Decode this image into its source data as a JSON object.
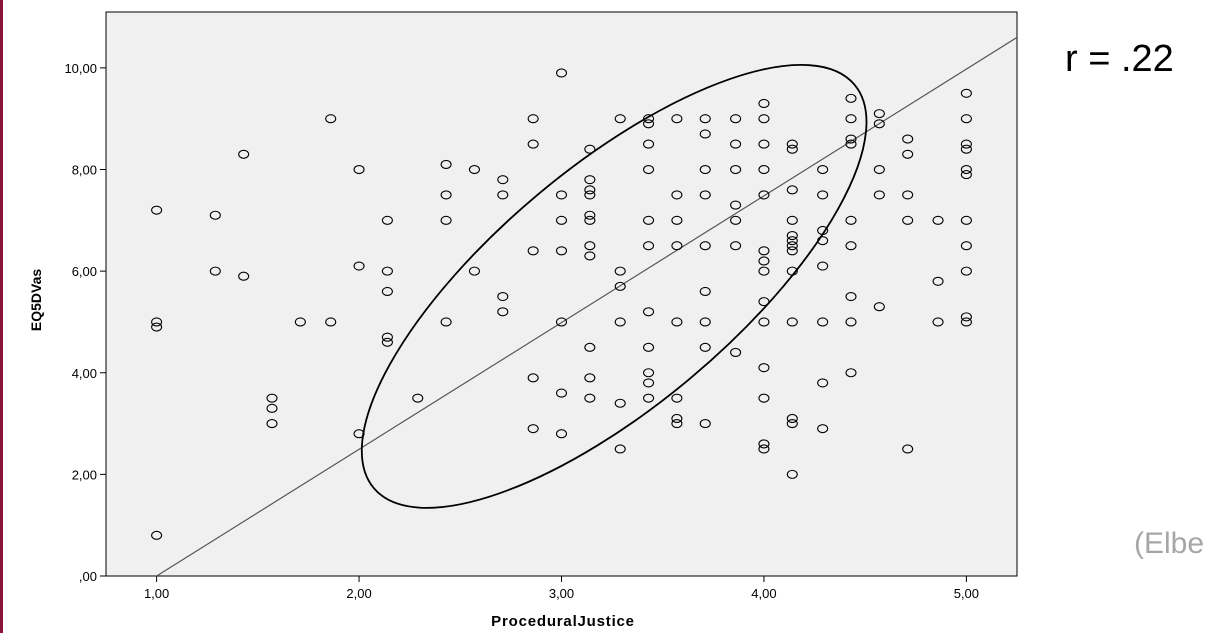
{
  "annotation": {
    "correlation": "r = .22",
    "citation": "(Elbe"
  },
  "colors": {
    "plot_bg": "#f0f0f0",
    "accent_bar": "#8a1538",
    "citation": "#a6a6a6"
  },
  "chart_data": {
    "type": "scatter",
    "xlabel": "ProceduralJustice",
    "ylabel": "EQ5DVas",
    "xlim": [
      0.75,
      5.25
    ],
    "ylim": [
      0,
      11.1
    ],
    "x_ticks": [
      1,
      2,
      3,
      4,
      5
    ],
    "x_tick_labels": [
      "1,00",
      "2,00",
      "3,00",
      "4,00",
      "5,00"
    ],
    "y_ticks": [
      0,
      2,
      4,
      6,
      8,
      10
    ],
    "y_tick_labels": [
      ",00",
      "2,00",
      "4,00",
      "6,00",
      "8,00",
      "10,00"
    ],
    "grid": false,
    "fit_line": {
      "x": [
        1.0,
        5.25
      ],
      "y": [
        0.0,
        10.6
      ]
    },
    "ellipse": {
      "cx": 3.26,
      "cy": 5.7,
      "rx": 1.55,
      "ry": 2.35,
      "rotation_deg": -40
    },
    "points": [
      [
        1.0,
        7.2
      ],
      [
        1.0,
        5.0
      ],
      [
        1.0,
        4.9
      ],
      [
        1.0,
        0.8
      ],
      [
        1.29,
        7.1
      ],
      [
        1.29,
        6.0
      ],
      [
        1.43,
        8.3
      ],
      [
        1.43,
        5.9
      ],
      [
        1.57,
        3.5
      ],
      [
        1.57,
        3.3
      ],
      [
        1.57,
        3.0
      ],
      [
        1.71,
        5.0
      ],
      [
        1.86,
        9.0
      ],
      [
        1.86,
        5.0
      ],
      [
        2.0,
        8.0
      ],
      [
        2.0,
        6.1
      ],
      [
        2.0,
        2.8
      ],
      [
        2.14,
        7.0
      ],
      [
        2.14,
        6.0
      ],
      [
        2.14,
        5.6
      ],
      [
        2.14,
        4.7
      ],
      [
        2.14,
        4.6
      ],
      [
        2.29,
        3.5
      ],
      [
        2.43,
        8.1
      ],
      [
        2.43,
        7.5
      ],
      [
        2.43,
        7.0
      ],
      [
        2.43,
        5.0
      ],
      [
        2.57,
        8.0
      ],
      [
        2.57,
        6.0
      ],
      [
        2.71,
        7.8
      ],
      [
        2.71,
        7.5
      ],
      [
        2.71,
        5.5
      ],
      [
        2.71,
        5.2
      ],
      [
        2.86,
        9.0
      ],
      [
        2.86,
        8.5
      ],
      [
        2.86,
        6.4
      ],
      [
        2.86,
        3.9
      ],
      [
        2.86,
        2.9
      ],
      [
        3.0,
        9.9
      ],
      [
        3.0,
        7.5
      ],
      [
        3.0,
        7.0
      ],
      [
        3.0,
        6.4
      ],
      [
        3.0,
        5.0
      ],
      [
        3.0,
        3.6
      ],
      [
        3.0,
        2.8
      ],
      [
        3.14,
        8.4
      ],
      [
        3.14,
        7.8
      ],
      [
        3.14,
        7.6
      ],
      [
        3.14,
        7.5
      ],
      [
        3.14,
        7.1
      ],
      [
        3.14,
        7.0
      ],
      [
        3.14,
        6.5
      ],
      [
        3.14,
        6.3
      ],
      [
        3.14,
        4.5
      ],
      [
        3.14,
        3.9
      ],
      [
        3.14,
        3.5
      ],
      [
        3.29,
        9.0
      ],
      [
        3.29,
        6.0
      ],
      [
        3.29,
        5.7
      ],
      [
        3.29,
        5.0
      ],
      [
        3.29,
        3.4
      ],
      [
        3.29,
        2.5
      ],
      [
        3.43,
        9.0
      ],
      [
        3.43,
        8.9
      ],
      [
        3.43,
        8.5
      ],
      [
        3.43,
        8.0
      ],
      [
        3.43,
        7.0
      ],
      [
        3.43,
        6.5
      ],
      [
        3.43,
        5.2
      ],
      [
        3.43,
        4.5
      ],
      [
        3.43,
        4.0
      ],
      [
        3.43,
        3.8
      ],
      [
        3.43,
        3.5
      ],
      [
        3.57,
        9.0
      ],
      [
        3.57,
        7.5
      ],
      [
        3.57,
        7.0
      ],
      [
        3.57,
        6.5
      ],
      [
        3.57,
        5.0
      ],
      [
        3.57,
        3.5
      ],
      [
        3.57,
        3.1
      ],
      [
        3.57,
        3.0
      ],
      [
        3.71,
        9.0
      ],
      [
        3.71,
        8.7
      ],
      [
        3.71,
        8.0
      ],
      [
        3.71,
        7.5
      ],
      [
        3.71,
        6.5
      ],
      [
        3.71,
        5.6
      ],
      [
        3.71,
        5.0
      ],
      [
        3.71,
        4.5
      ],
      [
        3.71,
        3.0
      ],
      [
        3.86,
        9.0
      ],
      [
        3.86,
        8.5
      ],
      [
        3.86,
        8.0
      ],
      [
        3.86,
        7.3
      ],
      [
        3.86,
        7.0
      ],
      [
        3.86,
        6.5
      ],
      [
        3.86,
        4.4
      ],
      [
        4.0,
        9.3
      ],
      [
        4.0,
        9.0
      ],
      [
        4.0,
        8.5
      ],
      [
        4.0,
        8.0
      ],
      [
        4.0,
        7.5
      ],
      [
        4.0,
        6.4
      ],
      [
        4.0,
        6.2
      ],
      [
        4.0,
        6.0
      ],
      [
        4.0,
        5.4
      ],
      [
        4.0,
        5.0
      ],
      [
        4.0,
        4.1
      ],
      [
        4.0,
        3.5
      ],
      [
        4.0,
        2.6
      ],
      [
        4.0,
        2.5
      ],
      [
        4.14,
        8.5
      ],
      [
        4.14,
        8.4
      ],
      [
        4.14,
        7.6
      ],
      [
        4.14,
        7.0
      ],
      [
        4.14,
        6.7
      ],
      [
        4.14,
        6.6
      ],
      [
        4.14,
        6.5
      ],
      [
        4.14,
        6.4
      ],
      [
        4.14,
        6.0
      ],
      [
        4.14,
        5.0
      ],
      [
        4.14,
        3.1
      ],
      [
        4.14,
        3.0
      ],
      [
        4.14,
        2.0
      ],
      [
        4.29,
        8.0
      ],
      [
        4.29,
        7.5
      ],
      [
        4.29,
        6.8
      ],
      [
        4.29,
        6.6
      ],
      [
        4.29,
        6.1
      ],
      [
        4.29,
        5.0
      ],
      [
        4.29,
        3.8
      ],
      [
        4.29,
        2.9
      ],
      [
        4.43,
        9.4
      ],
      [
        4.43,
        9.0
      ],
      [
        4.43,
        8.6
      ],
      [
        4.43,
        8.5
      ],
      [
        4.43,
        7.0
      ],
      [
        4.43,
        6.5
      ],
      [
        4.43,
        5.5
      ],
      [
        4.43,
        5.0
      ],
      [
        4.43,
        4.0
      ],
      [
        4.57,
        9.1
      ],
      [
        4.57,
        8.9
      ],
      [
        4.57,
        8.0
      ],
      [
        4.57,
        7.5
      ],
      [
        4.57,
        5.3
      ],
      [
        4.71,
        8.6
      ],
      [
        4.71,
        8.3
      ],
      [
        4.71,
        7.5
      ],
      [
        4.71,
        7.0
      ],
      [
        4.71,
        2.5
      ],
      [
        4.86,
        7.0
      ],
      [
        4.86,
        5.8
      ],
      [
        4.86,
        5.0
      ],
      [
        5.0,
        9.5
      ],
      [
        5.0,
        9.0
      ],
      [
        5.0,
        8.5
      ],
      [
        5.0,
        8.4
      ],
      [
        5.0,
        8.0
      ],
      [
        5.0,
        7.9
      ],
      [
        5.0,
        7.0
      ],
      [
        5.0,
        6.5
      ],
      [
        5.0,
        6.0
      ],
      [
        5.0,
        5.1
      ],
      [
        5.0,
        5.0
      ]
    ]
  }
}
